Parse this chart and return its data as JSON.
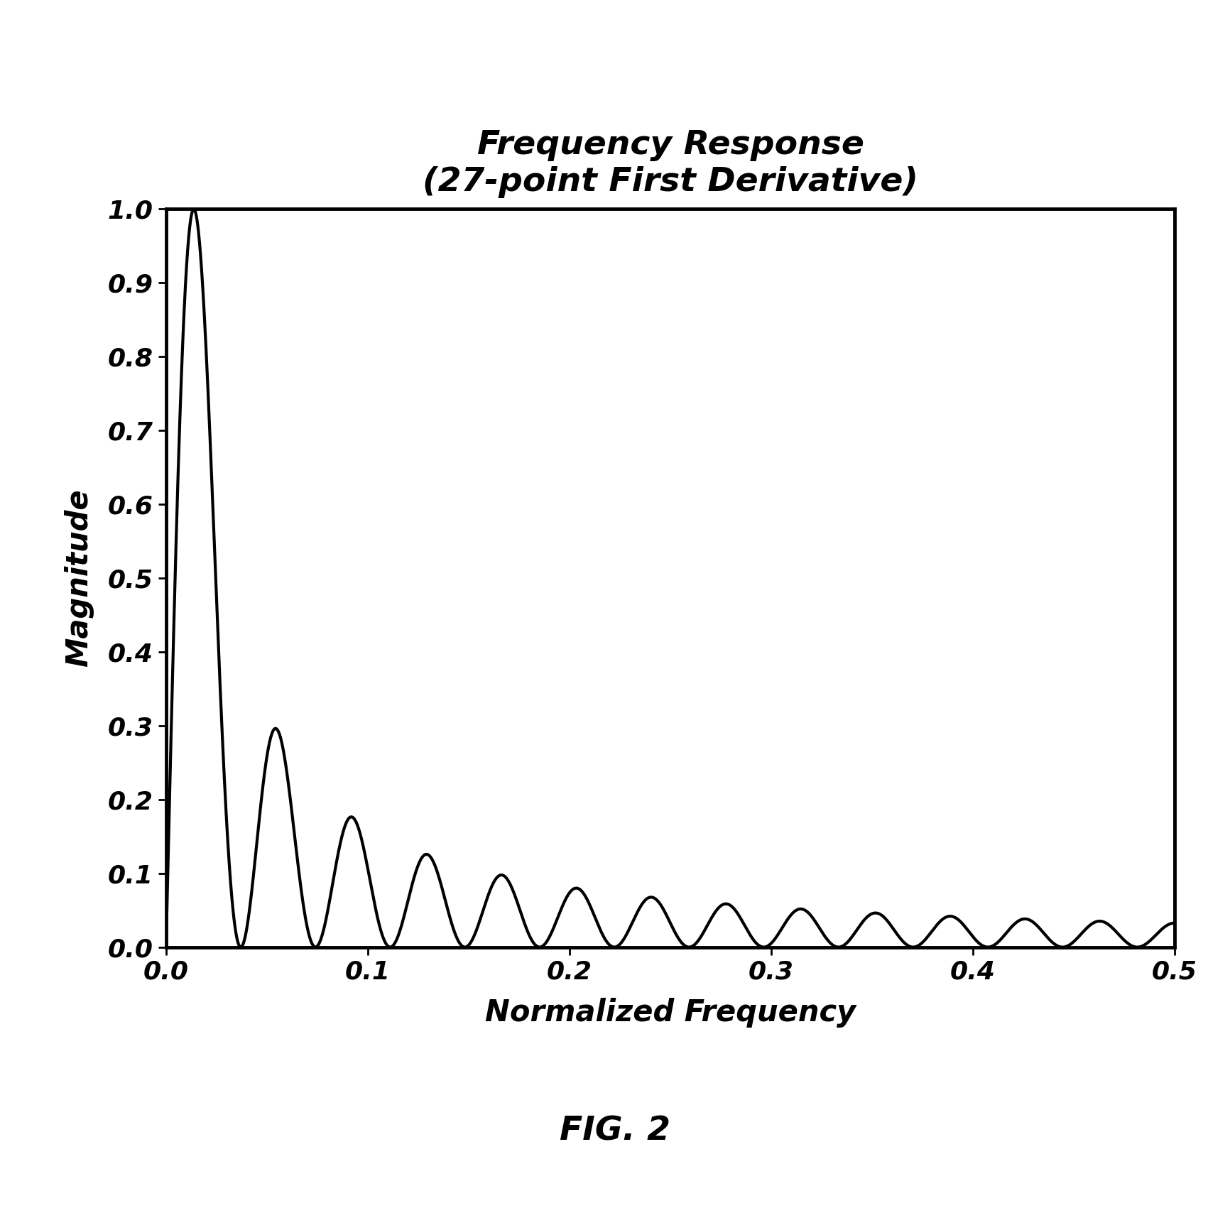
{
  "title_line1": "Frequency Response",
  "title_line2": "(27-point First Derivative)",
  "xlabel": "Normalized Frequency",
  "ylabel": "Magnitude",
  "fig_label": "FIG. 2",
  "xlim": [
    0.0,
    0.5
  ],
  "ylim": [
    0.0,
    1.0
  ],
  "xticks": [
    0.0,
    0.1,
    0.2,
    0.3,
    0.4,
    0.5
  ],
  "yticks": [
    0.0,
    0.1,
    0.2,
    0.3,
    0.4,
    0.5,
    0.6,
    0.7,
    0.8,
    0.9,
    1.0
  ],
  "line_color": "#000000",
  "line_width": 3.0,
  "background_color": "#ffffff",
  "title_fontsize": 34,
  "label_fontsize": 30,
  "tick_fontsize": 26,
  "fig_label_fontsize": 34,
  "num_samples": 20000,
  "N": 27
}
